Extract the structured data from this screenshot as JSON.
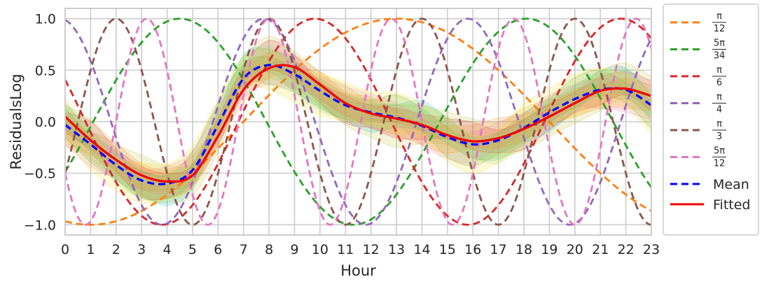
{
  "chart_data": {
    "type": "line",
    "xlabel": "Hour",
    "ylabel": "ResidualsLog",
    "xlim": [
      0,
      23
    ],
    "ylim": [
      -1.1,
      1.1
    ],
    "x_ticks": [
      "0",
      "1",
      "2",
      "3",
      "4",
      "5",
      "6",
      "7",
      "8",
      "9",
      "10",
      "11",
      "12",
      "13",
      "14",
      "15",
      "16",
      "17",
      "18",
      "19",
      "20",
      "21",
      "22",
      "23"
    ],
    "y_ticks": [
      "1.0",
      "0.5",
      "0.0",
      "−0.5",
      "−1.0"
    ],
    "y_tick_values": [
      1.0,
      0.5,
      0.0,
      -0.5,
      -1.0
    ],
    "grid": true,
    "legend_position": "outside-right",
    "cosine_series": [
      {
        "name_num": "π",
        "name_den": "12",
        "omega_over_pi": 0.08333,
        "peak_hour": 13.0,
        "color": "#ff7f0e"
      },
      {
        "name_num": "5π",
        "name_den": "34",
        "omega_over_pi": 0.14706,
        "peak_hour": 4.5,
        "color": "#2ca02c"
      },
      {
        "name_num": "π",
        "name_den": "6",
        "omega_over_pi": 0.16667,
        "peak_hour": 9.8,
        "color": "#d62728"
      },
      {
        "name_num": "π",
        "name_den": "4",
        "omega_over_pi": 0.25,
        "peak_hour": 7.8,
        "color": "#9467bd"
      },
      {
        "name_num": "π",
        "name_den": "3",
        "omega_over_pi": 0.33333,
        "peak_hour": 2.0,
        "color": "#8c564b"
      },
      {
        "name_num": "5π",
        "name_den": "12",
        "omega_over_pi": 0.41667,
        "peak_hour": 3.2,
        "color": "#e377c2"
      }
    ],
    "mean": {
      "name": "Mean",
      "color": "#0000ff",
      "x": [
        0,
        1,
        2,
        3,
        4,
        5,
        6,
        7,
        8,
        9,
        10,
        11,
        12,
        13,
        14,
        15,
        16,
        17,
        18,
        19,
        20,
        21,
        22,
        23
      ],
      "y": [
        -0.03,
        -0.22,
        -0.42,
        -0.57,
        -0.6,
        -0.47,
        -0.03,
        0.42,
        0.55,
        0.46,
        0.3,
        0.16,
        0.09,
        0.04,
        -0.04,
        -0.15,
        -0.22,
        -0.18,
        -0.06,
        0.09,
        0.22,
        0.31,
        0.31,
        0.16
      ]
    },
    "fitted": {
      "name": "Fitted",
      "color": "#ee0000",
      "x": [
        0,
        1,
        2,
        3,
        4,
        5,
        6,
        7,
        8,
        9,
        10,
        11,
        12,
        13,
        14,
        15,
        16,
        17,
        18,
        19,
        20,
        21,
        22,
        23
      ],
      "y": [
        0.05,
        -0.18,
        -0.37,
        -0.52,
        -0.58,
        -0.52,
        -0.14,
        0.31,
        0.52,
        0.53,
        0.36,
        0.18,
        0.08,
        0.03,
        -0.03,
        -0.13,
        -0.19,
        -0.16,
        -0.07,
        0.05,
        0.18,
        0.3,
        0.32,
        0.25
      ]
    },
    "band_colors": [
      "#bcbd22",
      "#17becf",
      "#2ca02c",
      "#e377c2",
      "#ff7f0e",
      "#d62728",
      "#98df8a",
      "#ffd700"
    ]
  }
}
